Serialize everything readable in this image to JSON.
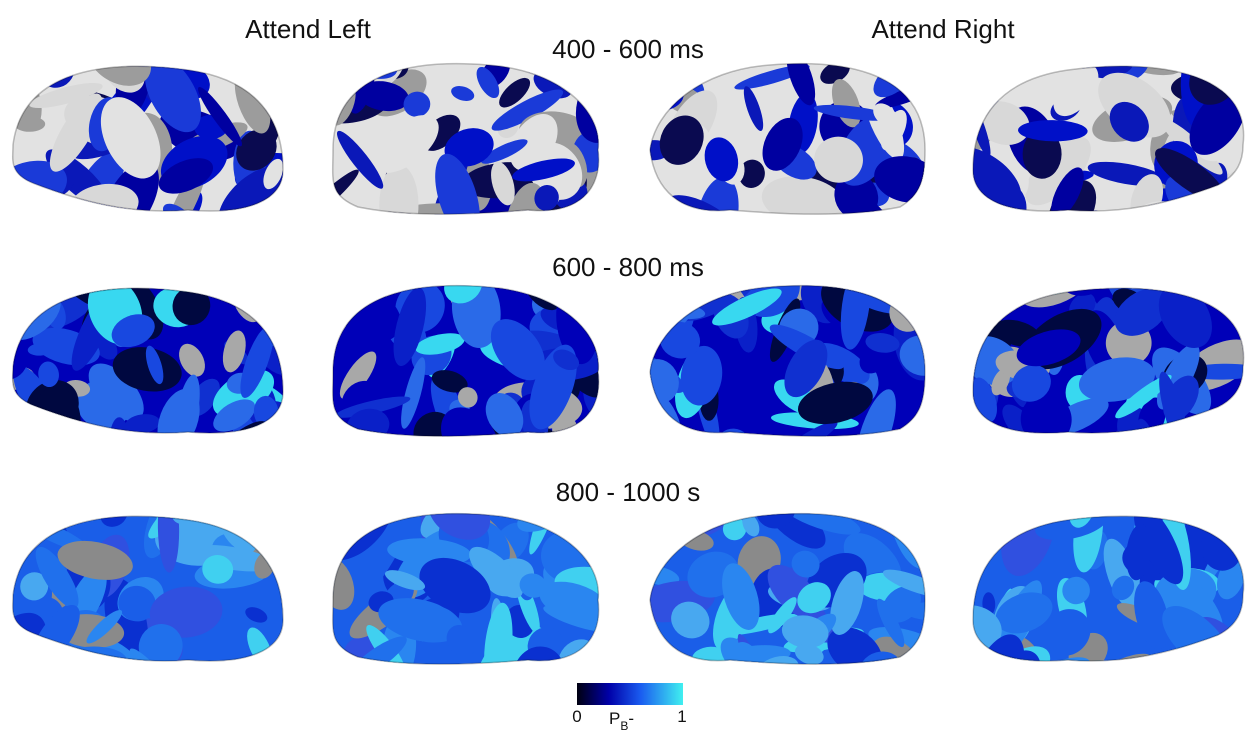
{
  "header": {
    "left": "Attend Left",
    "right": "Attend Right"
  },
  "rows": [
    {
      "label": "400 - 600 ms"
    },
    {
      "label": "600 - 800 ms"
    },
    {
      "label": "800 - 1000 s"
    }
  ],
  "colorbar": {
    "min_label": "0",
    "max_label": "1",
    "label": "P",
    "label_subscript": "B",
    "label_suffix": "-"
  }
}
